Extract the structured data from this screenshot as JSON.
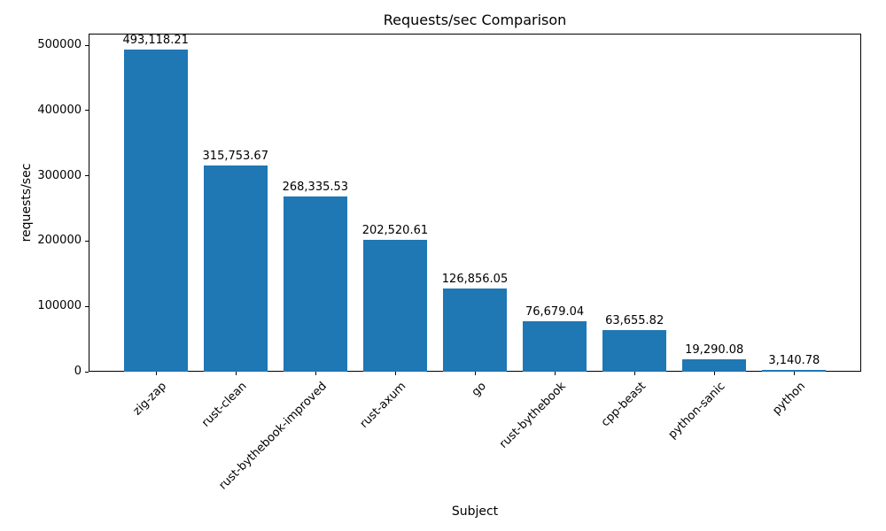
{
  "chart_data": {
    "type": "bar",
    "title": "Requests/sec Comparison",
    "xlabel": "Subject",
    "ylabel": "requests/sec",
    "categories": [
      "zig-zap",
      "rust-clean",
      "rust-bythebook-improved",
      "rust-axum",
      "go",
      "rust-bythebook",
      "cpp-beast",
      "python-sanic",
      "python"
    ],
    "values": [
      493118.21,
      315753.67,
      268335.53,
      202520.61,
      126856.05,
      76679.04,
      63655.82,
      19290.08,
      3140.78
    ],
    "value_labels": [
      "493,118.21",
      "315,753.67",
      "268,335.53",
      "202,520.61",
      "126,856.05",
      "76,679.04",
      "63,655.82",
      "19,290.08",
      "3,140.78"
    ],
    "bar_color": "#1f77b4",
    "ylim": [
      0,
      517774
    ],
    "yticks": [
      0,
      100000,
      200000,
      300000,
      400000,
      500000
    ],
    "ytick_labels": [
      "0",
      "100000",
      "200000",
      "300000",
      "400000",
      "500000"
    ],
    "grid": false,
    "legend": null
  }
}
